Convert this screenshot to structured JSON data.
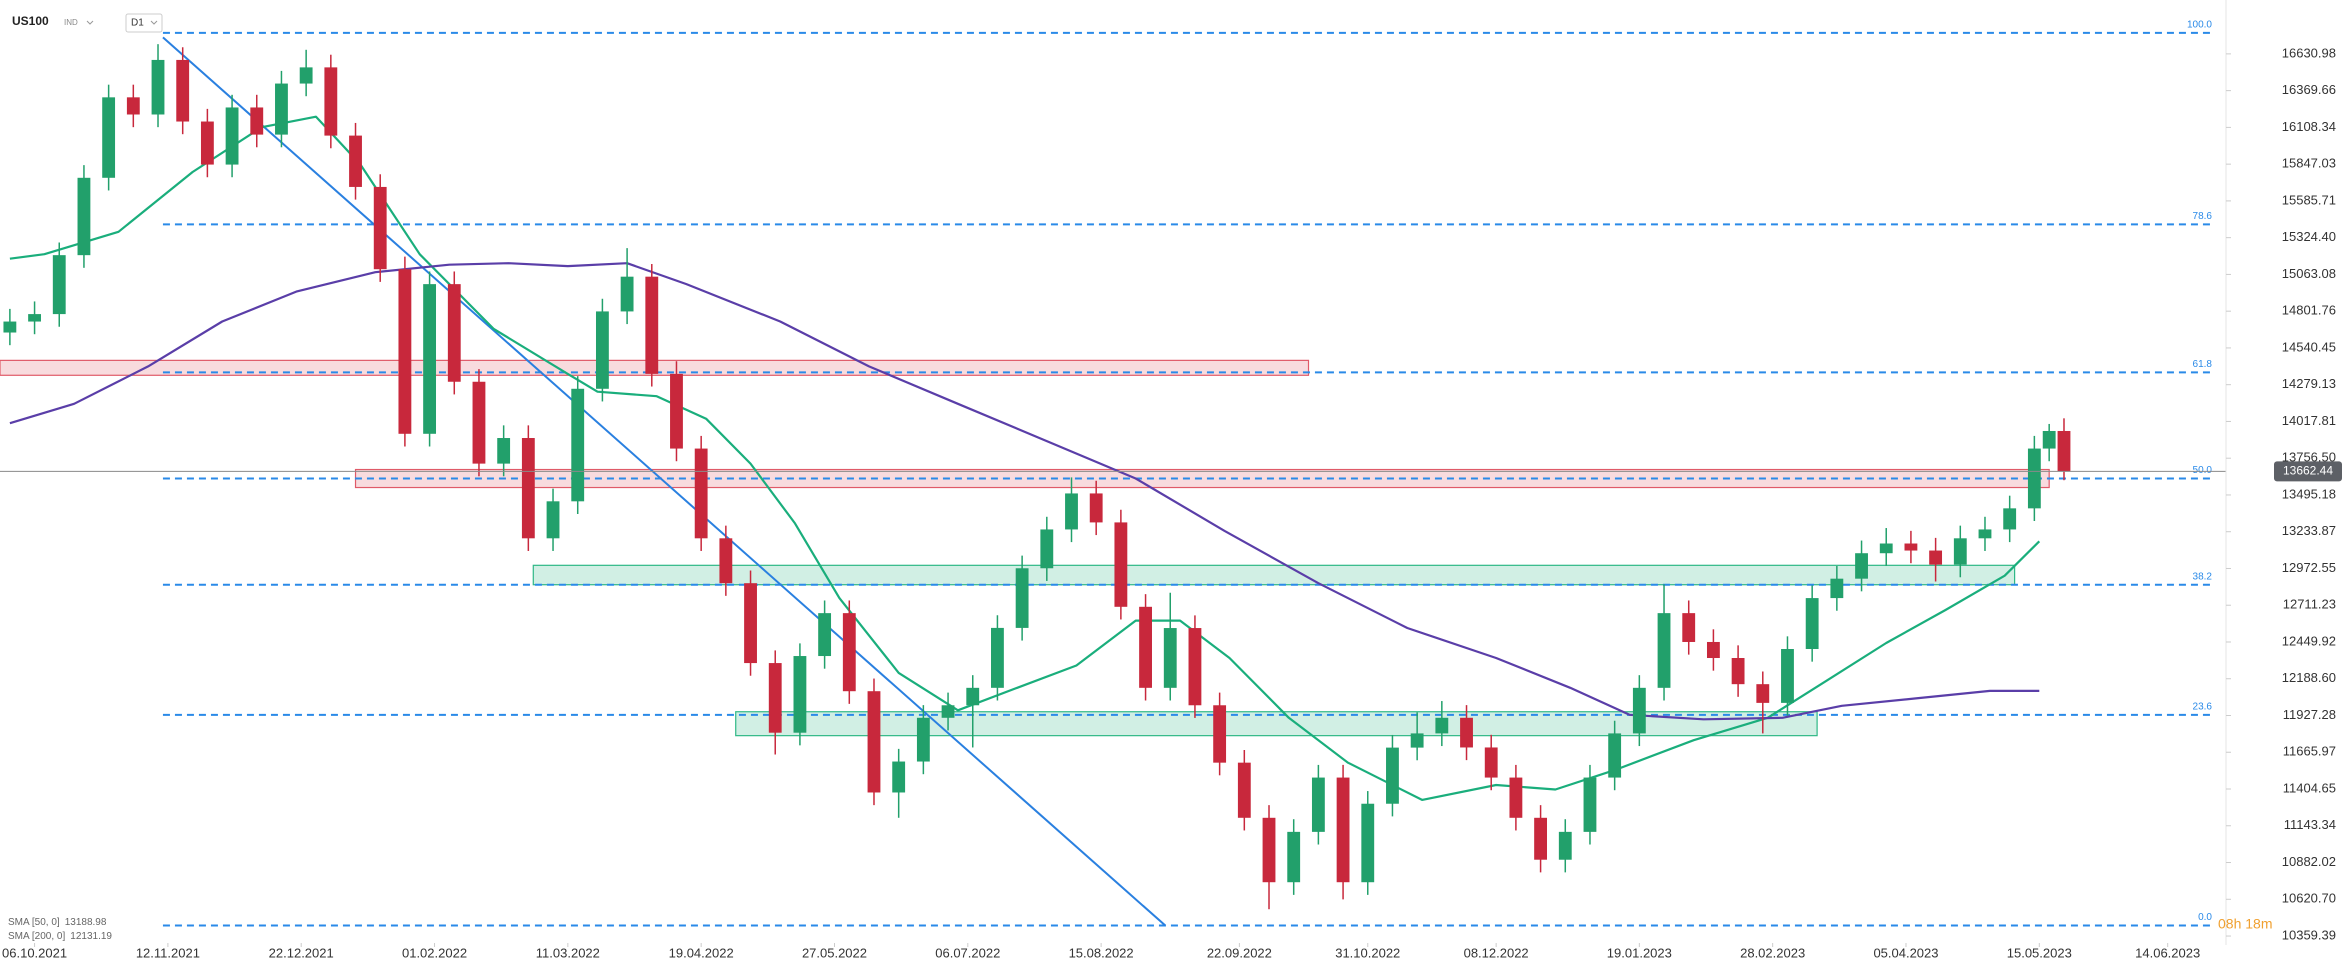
{
  "chart_data": {
    "type": "candlestick",
    "title": "US100",
    "market": "IND",
    "timeframe": "D1",
    "up_color": "#22a06b",
    "down_color": "#c8283c",
    "xlim": [
      -7,
      443
    ],
    "ylim": [
      10317,
      17014
    ],
    "xticks": [
      {
        "value": 0,
        "label": "06.10.2021"
      },
      {
        "value": 27,
        "label": "12.11.2021"
      },
      {
        "value": 54,
        "label": "22.12.2021"
      },
      {
        "value": 81,
        "label": "01.02.2022"
      },
      {
        "value": 108,
        "label": "11.03.2022"
      },
      {
        "value": 135,
        "label": "19.04.2022"
      },
      {
        "value": 162,
        "label": "27.05.2022"
      },
      {
        "value": 189,
        "label": "06.07.2022"
      },
      {
        "value": 216,
        "label": "15.08.2022"
      },
      {
        "value": 244,
        "label": "22.09.2022"
      },
      {
        "value": 270,
        "label": "31.10.2022"
      },
      {
        "value": 296,
        "label": "08.12.2022"
      },
      {
        "value": 325,
        "label": "19.01.2023"
      },
      {
        "value": 352,
        "label": "28.02.2023"
      },
      {
        "value": 379,
        "label": "05.04.2023"
      },
      {
        "value": 406,
        "label": "15.05.2023"
      },
      {
        "value": 432,
        "label": "14.06.2023"
      }
    ],
    "yticks": [
      16630.98,
      16369.66,
      16108.34,
      15847.03,
      15585.71,
      {
        "value": 15324.4,
        "label": "15324.40"
      },
      15063.08,
      14801.76,
      14540.45,
      14279.13,
      14017.81,
      {
        "value": 13756.5,
        "label": "13756.50"
      },
      13495.18,
      13233.87,
      12972.55,
      12711.23,
      12449.92,
      {
        "value": 12188.6,
        "label": "12188.60"
      },
      11927.28,
      11665.97,
      11404.65,
      11143.34,
      10882.02,
      {
        "value": 10620.7,
        "label": "10620.70"
      },
      10359.39
    ],
    "x": [
      -5,
      0,
      5,
      10,
      15,
      20,
      25,
      30,
      35,
      40,
      45,
      50,
      55,
      60,
      65,
      70,
      75,
      80,
      85,
      90,
      95,
      100,
      105,
      110,
      115,
      120,
      125,
      130,
      135,
      140,
      145,
      150,
      155,
      160,
      165,
      170,
      175,
      180,
      185,
      190,
      195,
      200,
      205,
      210,
      215,
      220,
      225,
      230,
      235,
      240,
      245,
      250,
      255,
      260,
      265,
      270,
      275,
      280,
      285,
      290,
      295,
      300,
      305,
      310,
      315,
      320,
      325,
      330,
      335,
      340,
      345,
      350,
      355,
      360,
      365,
      370,
      375,
      380,
      385,
      390,
      395,
      400,
      405,
      408,
      411
    ],
    "open": [
      14650,
      14728,
      14781,
      15200,
      15750,
      16322,
      16200,
      16588,
      16150,
      15844,
      16250,
      16057,
      16420,
      16535,
      16050,
      15685,
      15100,
      13930,
      14994,
      14300,
      13718,
      13900,
      13187,
      13450,
      14250,
      14800,
      15047,
      14356,
      13825,
      13187,
      12868,
      12300,
      11805,
      12350,
      12655,
      12100,
      11380,
      11600,
      11911,
      12000,
      12124,
      12550,
      12974,
      13250,
      13506,
      13300,
      12700,
      12124,
      12549,
      12000,
      11592,
      11200,
      10742,
      11100,
      11486,
      10742,
      11300,
      11699,
      11800,
      11911,
      11700,
      11486,
      11200,
      10902,
      11100,
      11486,
      11800,
      12124,
      12655,
      12450,
      12336,
      12150,
      12017,
      12400,
      12762,
      12900,
      13081,
      13150,
      13100,
      13000,
      13187,
      13250,
      13400,
      13825,
      13950
    ],
    "high": [
      14818,
      14871,
      15290,
      15840,
      16412,
      16412,
      16700,
      16678,
      16240,
      16340,
      16340,
      16510,
      16660,
      16625,
      16140,
      15775,
      15190,
      15084,
      15084,
      14390,
      13990,
      13990,
      13540,
      14340,
      14890,
      15250,
      15137,
      14446,
      13915,
      13277,
      12958,
      12390,
      12440,
      12745,
      12745,
      12190,
      11690,
      12001,
      12090,
      12214,
      12640,
      13064,
      13340,
      13620,
      13596,
      13390,
      12790,
      12800,
      12639,
      12090,
      11682,
      11290,
      11190,
      11576,
      11576,
      11390,
      11789,
      11950,
      12030,
      12001,
      11790,
      11576,
      11290,
      11190,
      11576,
      11890,
      12214,
      12860,
      12745,
      12540,
      12426,
      12240,
      12490,
      12852,
      12990,
      13171,
      13260,
      13240,
      13190,
      13277,
      13340,
      13490,
      13915,
      14000,
      14040
    ],
    "low": [
      14560,
      14638,
      14691,
      15110,
      15660,
      16110,
      16110,
      16060,
      15754,
      15754,
      15967,
      15967,
      16330,
      15960,
      15595,
      15010,
      13840,
      13840,
      14210,
      13628,
      13628,
      13097,
      13097,
      13360,
      14160,
      14710,
      14266,
      13735,
      13097,
      12778,
      12210,
      11650,
      11715,
      12260,
      12010,
      11290,
      11200,
      11510,
      11821,
      11700,
      12034,
      12460,
      12884,
      13160,
      13210,
      12610,
      12034,
      12034,
      11910,
      11502,
      11110,
      10550,
      10652,
      11010,
      10620,
      10652,
      11210,
      11609,
      11710,
      11610,
      11396,
      11110,
      10812,
      10812,
      11010,
      11396,
      11710,
      12034,
      12360,
      12246,
      12060,
      11800,
      11927,
      12310,
      12672,
      12810,
      12991,
      13010,
      12880,
      12910,
      13097,
      13160,
      13310,
      13735,
      13600
    ],
    "close": [
      14728,
      14781,
      15200,
      15750,
      16322,
      16200,
      16588,
      16150,
      15844,
      16250,
      16057,
      16420,
      16535,
      16050,
      15685,
      15100,
      13930,
      14994,
      14300,
      13718,
      13900,
      13187,
      13450,
      14250,
      14800,
      15047,
      14356,
      13825,
      13187,
      12868,
      12300,
      11805,
      12350,
      12655,
      12100,
      11380,
      11600,
      11911,
      12000,
      12124,
      12550,
      12974,
      13250,
      13506,
      13300,
      12700,
      12124,
      12549,
      12000,
      11592,
      11200,
      10742,
      11100,
      11486,
      10742,
      11300,
      11699,
      11800,
      11911,
      11700,
      11486,
      11200,
      10902,
      11100,
      11486,
      11800,
      12124,
      12655,
      12450,
      12336,
      12150,
      12017,
      12400,
      12762,
      12900,
      13081,
      13150,
      13100,
      13000,
      13187,
      13250,
      13400,
      13825,
      13950,
      13662
    ],
    "indicators": [
      {
        "name": "SMA [50, 0]",
        "last": 13188.98,
        "color": "#1aae7c",
        "x": [
          -5,
          2,
          17,
          32,
          46,
          57,
          66,
          78,
          93,
          108,
          114,
          126,
          136,
          145,
          154,
          163,
          175,
          187,
          199,
          211,
          223,
          232,
          242,
          254,
          266,
          281,
          296,
          308,
          320,
          336,
          351,
          363,
          375,
          387,
          399,
          406
        ],
        "values": [
          15175,
          15207,
          15366,
          15791,
          16110,
          16184,
          15844,
          15207,
          14675,
          14356,
          14229,
          14197,
          14037,
          13718,
          13293,
          12762,
          12230,
          11964,
          12124,
          12283,
          12602,
          12602,
          12336,
          11911,
          11592,
          11327,
          11433,
          11401,
          11539,
          11752,
          11911,
          12177,
          12443,
          12677,
          12921,
          13166
        ]
      },
      {
        "name": "SMA [200, 0]",
        "last": 12131.19,
        "color": "#5a3ea8",
        "x": [
          -5,
          8,
          23,
          38,
          53,
          69,
          84,
          96,
          108,
          120,
          132,
          151,
          169,
          187,
          205,
          223,
          241,
          260,
          278,
          296,
          311,
          323,
          338,
          354,
          366,
          381,
          396,
          406
        ],
        "values": [
          14005,
          14143,
          14409,
          14728,
          14941,
          15079,
          15132,
          15143,
          15122,
          15143,
          14994,
          14728,
          14409,
          14143,
          13878,
          13612,
          13240,
          12868,
          12549,
          12336,
          12124,
          11932,
          11900,
          11911,
          11996,
          12049,
          12102,
          12102
        ]
      }
    ],
    "fib_color": "#2a8ae8",
    "fib_start": 26,
    "fib_levels": [
      {
        "label": "100.0",
        "value": 16780
      },
      {
        "label": "78.6",
        "value": 15419
      },
      {
        "label": "61.8",
        "value": 14367
      },
      {
        "label": "50.0",
        "value": 13612
      },
      {
        "label": "38.2",
        "value": 12857
      },
      {
        "label": "23.6",
        "value": 11932
      },
      {
        "label": "0.0",
        "value": 10434
      }
    ],
    "zones": [
      {
        "color": "#e05a68",
        "x": [
          -7,
          258
        ],
        "y": [
          14346,
          14452
        ]
      },
      {
        "color": "#e05a68",
        "x": [
          65,
          408
        ],
        "y": [
          13548,
          13676
        ]
      },
      {
        "color": "#2fb886",
        "x": [
          101,
          401
        ],
        "y": [
          12857,
          12995
        ]
      },
      {
        "color": "#2fb886",
        "x": [
          142,
          361
        ],
        "y": [
          11784,
          11954
        ]
      }
    ],
    "trendline": {
      "color": "#2a80e0",
      "x": [
        26,
        229
      ],
      "values": [
        16748,
        10434
      ]
    },
    "last_price": 13662.44,
    "timer": "08h 18m"
  }
}
